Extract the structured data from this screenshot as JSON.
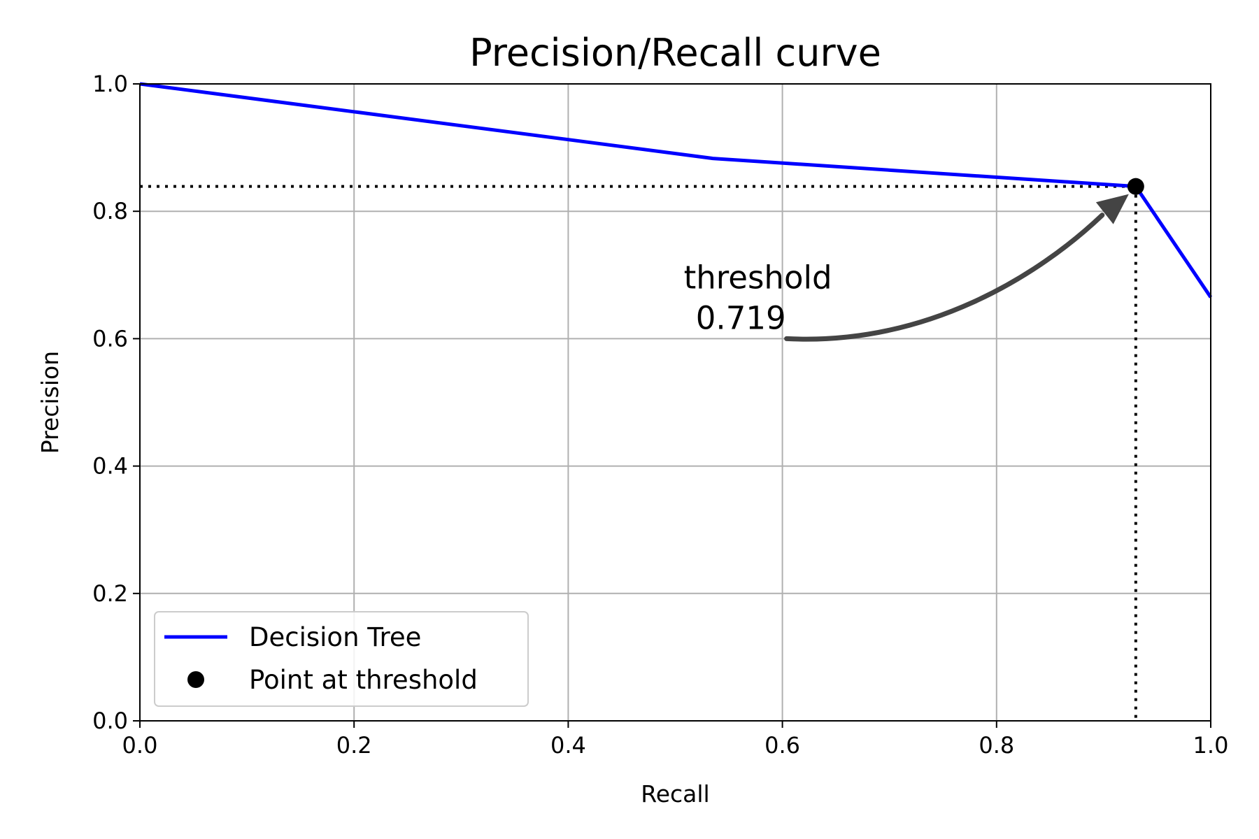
{
  "chart_data": {
    "type": "line",
    "title": "Precision/Recall curve",
    "xlabel": "Recall",
    "ylabel": "Precision",
    "xlim": [
      0.0,
      1.0
    ],
    "ylim": [
      0.0,
      1.0
    ],
    "xticks": [
      "0.0",
      "0.2",
      "0.4",
      "0.6",
      "0.8",
      "1.0"
    ],
    "yticks": [
      "0.0",
      "0.2",
      "0.4",
      "0.6",
      "0.8",
      "1.0"
    ],
    "grid": true,
    "legend_position": "lower-left",
    "series": [
      {
        "name": "Decision Tree",
        "color": "#0000ff",
        "style": "solid",
        "x": [
          0.0,
          0.535,
          0.93,
          1.0
        ],
        "y": [
          1.0,
          0.883,
          0.839,
          0.665
        ]
      },
      {
        "name": "Point at threshold",
        "color": "#000000",
        "style": "marker",
        "x": [
          0.93
        ],
        "y": [
          0.839
        ]
      }
    ],
    "guides": {
      "point": {
        "x": 0.93,
        "y": 0.839
      },
      "style": "dotted",
      "color": "#000000"
    },
    "annotation": {
      "line1": "threshold",
      "line2": "0.719",
      "text_anchor": {
        "x": 0.6,
        "y": 0.6
      },
      "target": {
        "x": 0.93,
        "y": 0.839
      },
      "arrow_color": "#444444"
    }
  }
}
